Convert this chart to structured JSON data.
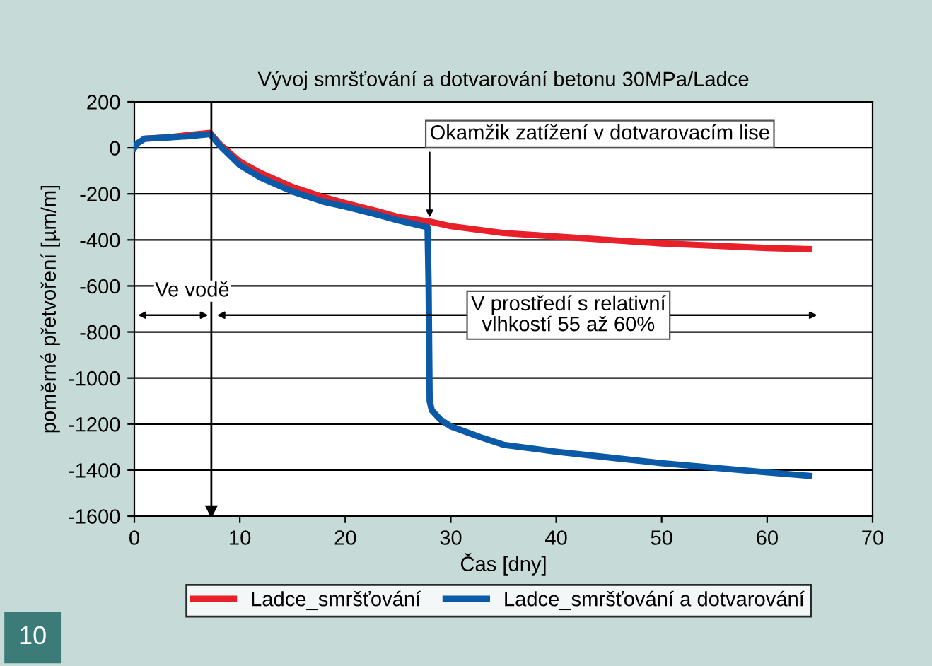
{
  "chart_data": {
    "type": "line",
    "title": "Vývoj smršťování a dotvarování betonu 30MPa/Ladce",
    "xlabel": "Čas [dny]",
    "ylabel": "poměrné přetvoření [µm/m]",
    "xlim": [
      0,
      70
    ],
    "xticks": [
      0,
      10,
      20,
      30,
      40,
      50,
      60,
      70
    ],
    "ylim": [
      -1600,
      200
    ],
    "yticks": [
      -1600,
      -1400,
      -1200,
      -1000,
      -800,
      -600,
      -400,
      -200,
      0,
      200
    ],
    "grid": "y",
    "legend": "bottom",
    "line_style": "solid",
    "marker": "none",
    "series": [
      {
        "name": "Ladce_smršťování",
        "color": "#e8202a",
        "x": [
          1,
          3,
          5,
          7.2,
          8,
          10,
          12,
          15,
          18,
          20,
          23,
          25,
          28,
          30,
          35,
          40,
          45,
          50,
          55,
          60,
          64
        ],
        "values": [
          40,
          45,
          55,
          65,
          20,
          -60,
          -110,
          -170,
          -215,
          -240,
          -275,
          -300,
          -320,
          -340,
          -370,
          -385,
          -400,
          -415,
          -425,
          -435,
          -440
        ]
      },
      {
        "name": "Ladce_smršťování a dotvarování",
        "color": "#0b5aa8",
        "x": [
          0,
          0.3,
          1,
          3,
          5,
          7.2,
          8,
          10,
          12,
          15,
          18,
          20,
          23,
          25,
          27.8,
          27.9,
          28,
          28.2,
          29,
          30,
          33,
          35,
          40,
          45,
          50,
          55,
          60,
          64
        ],
        "values": [
          0,
          20,
          40,
          45,
          50,
          60,
          15,
          -75,
          -130,
          -190,
          -235,
          -255,
          -290,
          -315,
          -345,
          -600,
          -1100,
          -1140,
          -1180,
          -1210,
          -1260,
          -1290,
          -1320,
          -1345,
          -1370,
          -1390,
          -1410,
          -1425
        ]
      }
    ],
    "ref_lines": [
      {
        "axis": "x",
        "value": 7.3,
        "color": "#000000"
      }
    ],
    "annotations": [
      {
        "text": "Okamžik zatížení v dotvarovacím lise",
        "x": 28,
        "y": -320
      },
      "Ve vodě",
      "V prostředí s relativní\nvlhkostí 55 až 60%",
      "10"
    ]
  }
}
